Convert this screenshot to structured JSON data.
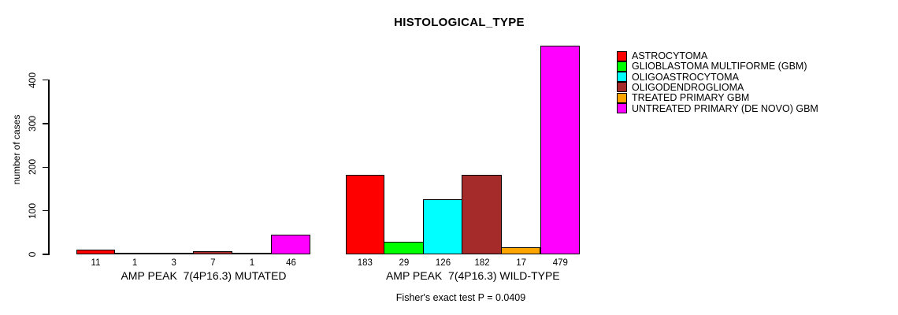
{
  "chart_data": {
    "type": "bar",
    "title": "HISTOLOGICAL_TYPE",
    "ylabel": "number of cases",
    "xlabel": "",
    "ylim": [
      0,
      480
    ],
    "yticks": [
      0,
      100,
      200,
      300,
      400
    ],
    "grid": false,
    "legend_position": "right",
    "categories": [
      "AMP PEAK  7(4P16.3) MUTATED",
      "AMP PEAK  7(4P16.3) WILD-TYPE"
    ],
    "series": [
      {
        "name": "ASTROCYTOMA",
        "color": "#FF0000",
        "values": [
          11,
          183
        ]
      },
      {
        "name": "GLIOBLASTOMA MULTIFORME (GBM)",
        "color": "#00FF00",
        "values": [
          1,
          29
        ]
      },
      {
        "name": "OLIGOASTROCYTOMA",
        "color": "#00FFFF",
        "values": [
          3,
          126
        ]
      },
      {
        "name": "OLIGODENDROGLIOMA",
        "color": "#A52A2A",
        "values": [
          7,
          182
        ]
      },
      {
        "name": "TREATED PRIMARY GBM",
        "color": "#FFA500",
        "values": [
          1,
          17
        ]
      },
      {
        "name": "UNTREATED PRIMARY (DE NOVO) GBM",
        "color": "#FF00FF",
        "values": [
          46,
          479
        ]
      }
    ],
    "annotation": "Fisher's exact test P = 0.0409",
    "axis_color": "#000000",
    "bar_border_color": "#000000"
  }
}
